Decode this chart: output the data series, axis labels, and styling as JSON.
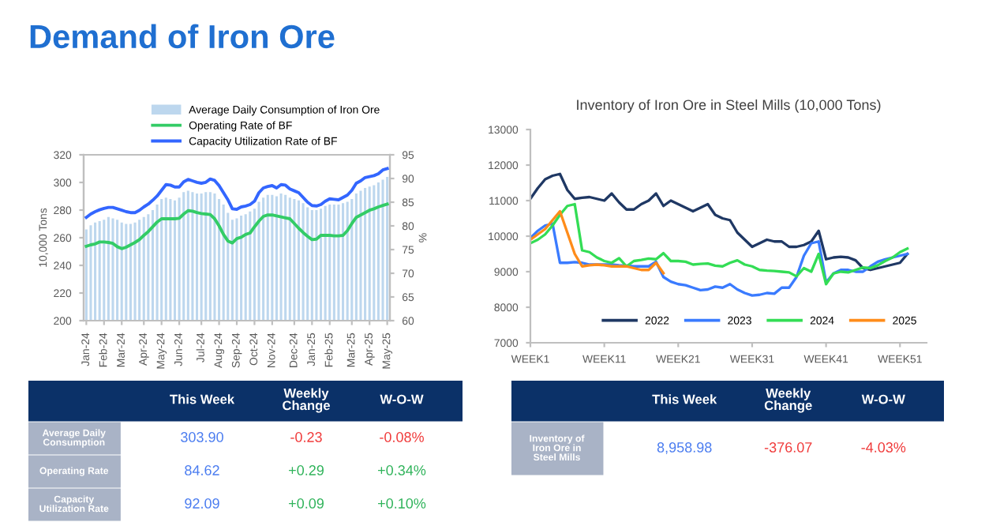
{
  "chart_data": [
    {
      "type": "bar",
      "title": "Demand of Iron Ore",
      "ylabel": "10,000 Tons",
      "y2label": "%",
      "categories": [
        "Jan-24",
        null,
        null,
        null,
        "Feb-24",
        null,
        null,
        null,
        "Mar-24",
        null,
        null,
        null,
        null,
        "Apr-24",
        null,
        null,
        null,
        "May-24",
        null,
        null,
        null,
        "Jun-24",
        null,
        null,
        null,
        null,
        "Jul-24",
        null,
        null,
        null,
        "Aug-24",
        null,
        null,
        null,
        "Sep-24",
        null,
        null,
        null,
        "Oct-24",
        null,
        null,
        null,
        "Nov-24",
        null,
        null,
        null,
        null,
        "Dec-24",
        null,
        null,
        null,
        "Jan-25",
        null,
        null,
        null,
        "Feb-25",
        null,
        null,
        null,
        null,
        "Mar-25",
        null,
        null,
        null,
        "Apr-25",
        null,
        null,
        null,
        "May-25"
      ],
      "ylim": [
        200,
        320
      ],
      "yticks": [
        200,
        220,
        240,
        260,
        280,
        300,
        320
      ],
      "y2lim": [
        60,
        95
      ],
      "y2ticks": [
        60,
        65,
        70,
        75,
        80,
        85,
        90,
        95
      ],
      "legend": "top",
      "grid": false,
      "series": [
        {
          "name": "Average Daily Consumption of Iron Ore",
          "type": "bar",
          "color": "#bdd7ee",
          "values": [
            266,
            269,
            271,
            272,
            273,
            275,
            274,
            273,
            271,
            270,
            270,
            271,
            273,
            275,
            277,
            280,
            284,
            288,
            289,
            288,
            287,
            289,
            293,
            294,
            293,
            292,
            292,
            293,
            293,
            292,
            288,
            284,
            278,
            273,
            274,
            276,
            277,
            279,
            281,
            286,
            289,
            291,
            291,
            290,
            292,
            291,
            289,
            288,
            287,
            285,
            282,
            280,
            280,
            281,
            283,
            284,
            284,
            284,
            285,
            286,
            288,
            292,
            294,
            296,
            297,
            298,
            300,
            302,
            304
          ]
        },
        {
          "name": "Operating Rate of BF",
          "type": "line",
          "axis": "y2",
          "color": "#33cc66",
          "values": [
            75.7,
            76,
            76.2,
            76.6,
            76.6,
            76.5,
            76.3,
            75.6,
            75.2,
            75.5,
            76,
            76.5,
            77.1,
            78,
            78.8,
            79.8,
            80.8,
            81.5,
            81.5,
            81.5,
            81.5,
            81.6,
            82.5,
            83.2,
            83.1,
            82.8,
            82.6,
            82.5,
            82.4,
            81.5,
            80,
            78.2,
            76.8,
            76.4,
            77.3,
            77.6,
            78.2,
            78.5,
            79.8,
            81,
            82,
            82.3,
            82.3,
            82.1,
            81.9,
            81.7,
            81.5,
            80.5,
            79.5,
            78.6,
            77.8,
            77.1,
            77.2,
            78,
            78,
            78,
            77.9,
            77.9,
            78,
            79,
            80.5,
            81.8,
            82.3,
            82.8,
            83.3,
            83.6,
            84,
            84.3,
            84.6
          ]
        },
        {
          "name": "Capacity Utilization Rate of BF",
          "type": "line",
          "axis": "y2",
          "color": "#3366ff",
          "values": [
            81.8,
            82.5,
            83,
            83.4,
            83.7,
            83.9,
            83.9,
            83.6,
            83.3,
            83,
            82.8,
            82.8,
            83.3,
            84,
            84.6,
            85.4,
            86.3,
            87.5,
            88.7,
            88.6,
            88.2,
            88.2,
            89.3,
            89.8,
            89.5,
            89.2,
            89,
            89.2,
            89.9,
            89.6,
            88.5,
            87,
            85.5,
            83.6,
            83.5,
            84,
            84.2,
            84.5,
            85.2,
            87,
            88,
            88.3,
            88.5,
            88,
            88.7,
            88.6,
            87.8,
            87.4,
            87,
            86,
            85,
            84.3,
            84.2,
            84.5,
            85.2,
            85.7,
            85.6,
            85.5,
            86,
            86.5,
            87.5,
            89,
            89.5,
            90.2,
            90.4,
            90.6,
            91,
            91.8,
            92.1
          ]
        }
      ]
    },
    {
      "type": "line",
      "title": "Inventory of Iron Ore in Steel Mills (10,000 Tons)",
      "categories": [
        "WEEK1",
        null,
        null,
        null,
        null,
        null,
        null,
        null,
        null,
        null,
        "WEEK11",
        null,
        null,
        null,
        null,
        null,
        null,
        null,
        null,
        null,
        "WEEK21",
        null,
        null,
        null,
        null,
        null,
        null,
        null,
        null,
        null,
        "WEEK31",
        null,
        null,
        null,
        null,
        null,
        null,
        null,
        null,
        null,
        "WEEK41",
        null,
        null,
        null,
        null,
        null,
        null,
        null,
        null,
        null,
        "WEEK51",
        null
      ],
      "ylim": [
        7000,
        13000
      ],
      "yticks": [
        7000,
        8000,
        9000,
        10000,
        11000,
        12000,
        13000
      ],
      "legend": "bottom right",
      "grid": false,
      "series": [
        {
          "name": "2022",
          "color": "#1f3864",
          "values": [
            11050,
            11350,
            11600,
            11700,
            11750,
            11300,
            11050,
            11080,
            11100,
            11050,
            11000,
            11200,
            10950,
            10750,
            10750,
            10900,
            11000,
            11200,
            10850,
            11000,
            10900,
            10800,
            10700,
            10800,
            10900,
            10600,
            10500,
            10450,
            10100,
            9900,
            9700,
            9800,
            9900,
            9850,
            9850,
            9700,
            9700,
            9750,
            9850,
            10150,
            9350,
            9400,
            9420,
            9400,
            9320,
            9100,
            9050,
            9100,
            9150,
            9200,
            9250,
            9500
          ]
        },
        {
          "name": "2023",
          "color": "#3a7bff",
          "values": [
            9950,
            10150,
            10300,
            10350,
            9250,
            9250,
            9270,
            9250,
            9200,
            9200,
            9200,
            9200,
            9180,
            9170,
            9150,
            9150,
            9150,
            9280,
            8850,
            8720,
            8650,
            8620,
            8550,
            8480,
            8500,
            8580,
            8550,
            8650,
            8500,
            8400,
            8330,
            8350,
            8400,
            8380,
            8550,
            8550,
            8850,
            9450,
            9800,
            9850,
            8700,
            8950,
            9050,
            9050,
            9000,
            9000,
            9150,
            9280,
            9350,
            9400,
            9450,
            9500
          ]
        },
        {
          "name": "2024",
          "color": "#33dd55",
          "values": [
            9800,
            9900,
            10050,
            10300,
            10600,
            10850,
            10900,
            9600,
            9550,
            9400,
            9300,
            9250,
            9380,
            9150,
            9300,
            9330,
            9370,
            9350,
            9520,
            9300,
            9300,
            9280,
            9200,
            9220,
            9230,
            9170,
            9150,
            9250,
            9320,
            9200,
            9150,
            9050,
            9030,
            9020,
            9000,
            8980,
            8870,
            9100,
            9000,
            9500,
            8650,
            8950,
            9000,
            8980,
            9050,
            9120,
            9100,
            9180,
            9300,
            9400,
            9550,
            9650
          ]
        },
        {
          "name": "2025",
          "color": "#ff8c1a",
          "values": [
            9900,
            10050,
            10200,
            10450,
            10700,
            10100,
            9500,
            9150,
            9180,
            9200,
            9180,
            9150,
            9150,
            9150,
            9100,
            9050,
            9050,
            9250,
            8960,
            null,
            null,
            null,
            null,
            null,
            null,
            null,
            null,
            null,
            null,
            null,
            null,
            null,
            null,
            null,
            null,
            null,
            null,
            null,
            null,
            null,
            null,
            null,
            null,
            null,
            null,
            null,
            null,
            null,
            null,
            null,
            null,
            null
          ]
        }
      ]
    },
    {
      "type": "other",
      "categories": [
        "This Week",
        "Weekly Change",
        "W-O-W"
      ],
      "y_categories": [
        "Average Daily Consumption",
        "Operating Rate",
        "Capacity Utilization Rate"
      ],
      "cell_labels": [
        [
          "303.90",
          "-0.23",
          "-0.08%"
        ],
        [
          "84.62",
          "+0.29",
          "+0.34%"
        ],
        [
          "92.09",
          "+0.09",
          "+0.10%"
        ]
      ],
      "colors": [
        [
          "#4a7cf0",
          "#f03a3a",
          "#f03a3a"
        ],
        [
          "#4a7cf0",
          "#2fb35a",
          "#2fb35a"
        ],
        [
          "#4a7cf0",
          "#2fb35a",
          "#2fb35a"
        ]
      ]
    },
    {
      "type": "other",
      "categories": [
        "This Week",
        "Weekly Change",
        "W-O-W"
      ],
      "y_categories": [
        "Inventory of Iron Ore in Steel Mills"
      ],
      "cell_labels": [
        [
          "8,958.98",
          "-376.07",
          "-4.03%"
        ]
      ],
      "colors": [
        [
          "#4a7cf0",
          "#f03a3a",
          "#f03a3a"
        ]
      ]
    }
  ]
}
